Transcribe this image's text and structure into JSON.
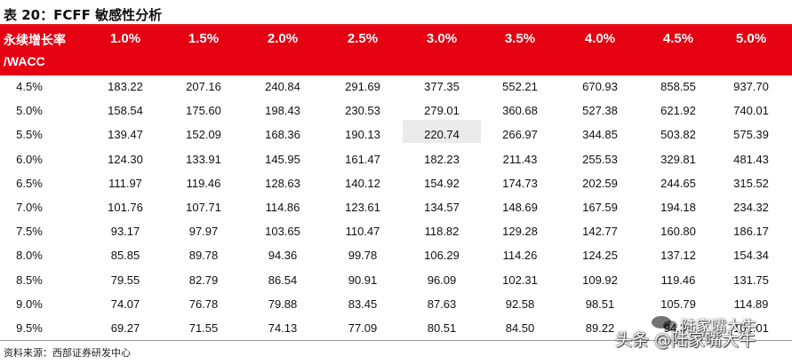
{
  "title": "表 20：FCFF 敏感性分析",
  "header": {
    "row_label_line1": "永续增长率",
    "row_label_line2": "/WACC",
    "growth_rates": [
      "1.0%",
      "1.5%",
      "2.0%",
      "2.5%",
      "3.0%",
      "3.5%",
      "4.0%",
      "4.5%",
      "5.0%"
    ]
  },
  "rows": [
    {
      "wacc": "4.5%",
      "values": [
        "183.22",
        "207.16",
        "240.84",
        "291.69",
        "377.35",
        "552.21",
        "670.93",
        "858.55",
        "937.70"
      ]
    },
    {
      "wacc": "5.0%",
      "values": [
        "158.54",
        "175.60",
        "198.43",
        "230.53",
        "279.01",
        "360.68",
        "527.38",
        "621.92",
        "740.01"
      ]
    },
    {
      "wacc": "5.5%",
      "values": [
        "139.47",
        "152.09",
        "168.36",
        "190.13",
        "220.74",
        "266.97",
        "344.85",
        "503.82",
        "575.39"
      ]
    },
    {
      "wacc": "6.0%",
      "values": [
        "124.30",
        "133.91",
        "145.95",
        "161.47",
        "182.23",
        "211.43",
        "255.53",
        "329.81",
        "481.43"
      ]
    },
    {
      "wacc": "6.5%",
      "values": [
        "111.97",
        "119.46",
        "128.63",
        "140.12",
        "154.92",
        "174.73",
        "202.59",
        "244.65",
        "315.52"
      ]
    },
    {
      "wacc": "7.0%",
      "values": [
        "101.76",
        "107.71",
        "114.86",
        "123.61",
        "134.57",
        "148.69",
        "167.59",
        "194.18",
        "234.32"
      ]
    },
    {
      "wacc": "7.5%",
      "values": [
        "93.17",
        "97.97",
        "103.65",
        "110.47",
        "118.82",
        "129.28",
        "142.77",
        "160.80",
        "186.17"
      ]
    },
    {
      "wacc": "8.0%",
      "values": [
        "85.85",
        "89.78",
        "94.36",
        "99.78",
        "106.29",
        "114.26",
        "124.25",
        "137.12",
        "154.34"
      ]
    },
    {
      "wacc": "8.5%",
      "values": [
        "79.55",
        "82.79",
        "86.54",
        "90.91",
        "96.09",
        "102.31",
        "109.92",
        "119.46",
        "131.75"
      ]
    },
    {
      "wacc": "9.0%",
      "values": [
        "74.07",
        "76.78",
        "79.88",
        "83.45",
        "87.63",
        "92.58",
        "98.51",
        "105.79",
        "114.89"
      ]
    },
    {
      "wacc": "9.5%",
      "values": [
        "69.27",
        "71.55",
        "74.13",
        "77.09",
        "80.51",
        "84.50",
        "89.22",
        "94.33",
        "101.01"
      ]
    }
  ],
  "highlight_cell": {
    "row": "7.0%",
    "column": "3.0%"
  },
  "source": "资料来源：西部证券研发中心",
  "watermark": {
    "top": "陆家嘴大牛",
    "bottom": "头条 @陆家嘴大牛"
  },
  "colors": {
    "header_bg": "#e50012",
    "highlight_bg": "#ebebeb"
  }
}
